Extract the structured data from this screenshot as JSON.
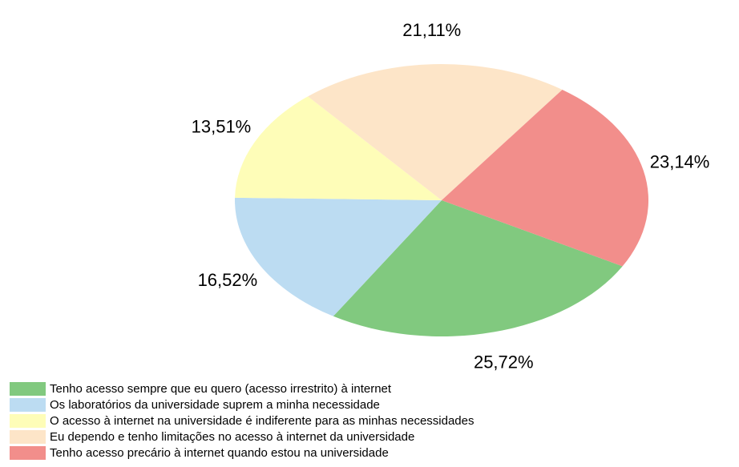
{
  "chart_data": {
    "type": "pie",
    "categories": [
      "Tenho acesso sempre que eu quero (acesso irrestrito) à internet",
      "Os laboratórios da universidade suprem a minha necessidade",
      "O acesso à internet na universidade é indiferente para as minhas necessidades",
      "Eu dependo e tenho limitações no acesso à internet da universidade",
      "Tenho acesso precário à internet quando estou na universidade"
    ],
    "values": [
      25.72,
      16.52,
      13.51,
      21.11,
      23.14
    ],
    "value_labels": [
      "25,72%",
      "16,52%",
      "13,51%",
      "21,11%",
      "23,14%"
    ],
    "colors": [
      "#81c97f",
      "#bcdcf2",
      "#fefdb8",
      "#fde5c8",
      "#f28e8b"
    ]
  }
}
